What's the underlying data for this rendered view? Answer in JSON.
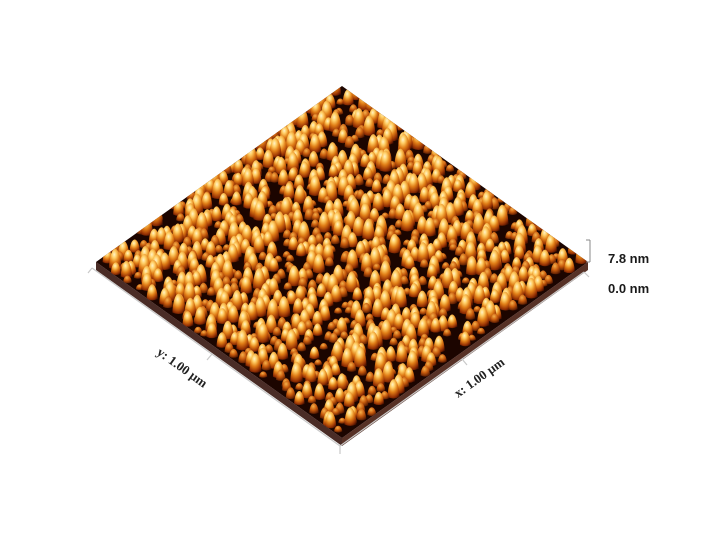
{
  "image": {
    "subject": "AFM 3D topography",
    "colormap": [
      "#140300",
      "#3a0b00",
      "#6e2100",
      "#a43c05",
      "#d0680f",
      "#f0a030",
      "#ffd27a",
      "#fff3c8"
    ]
  },
  "axes": {
    "y_label": "y: 1.00 µm",
    "x_label": "x: 1.00 µm",
    "z_max_label": "7.8 nm",
    "z_min_label": "0.0 nm"
  }
}
